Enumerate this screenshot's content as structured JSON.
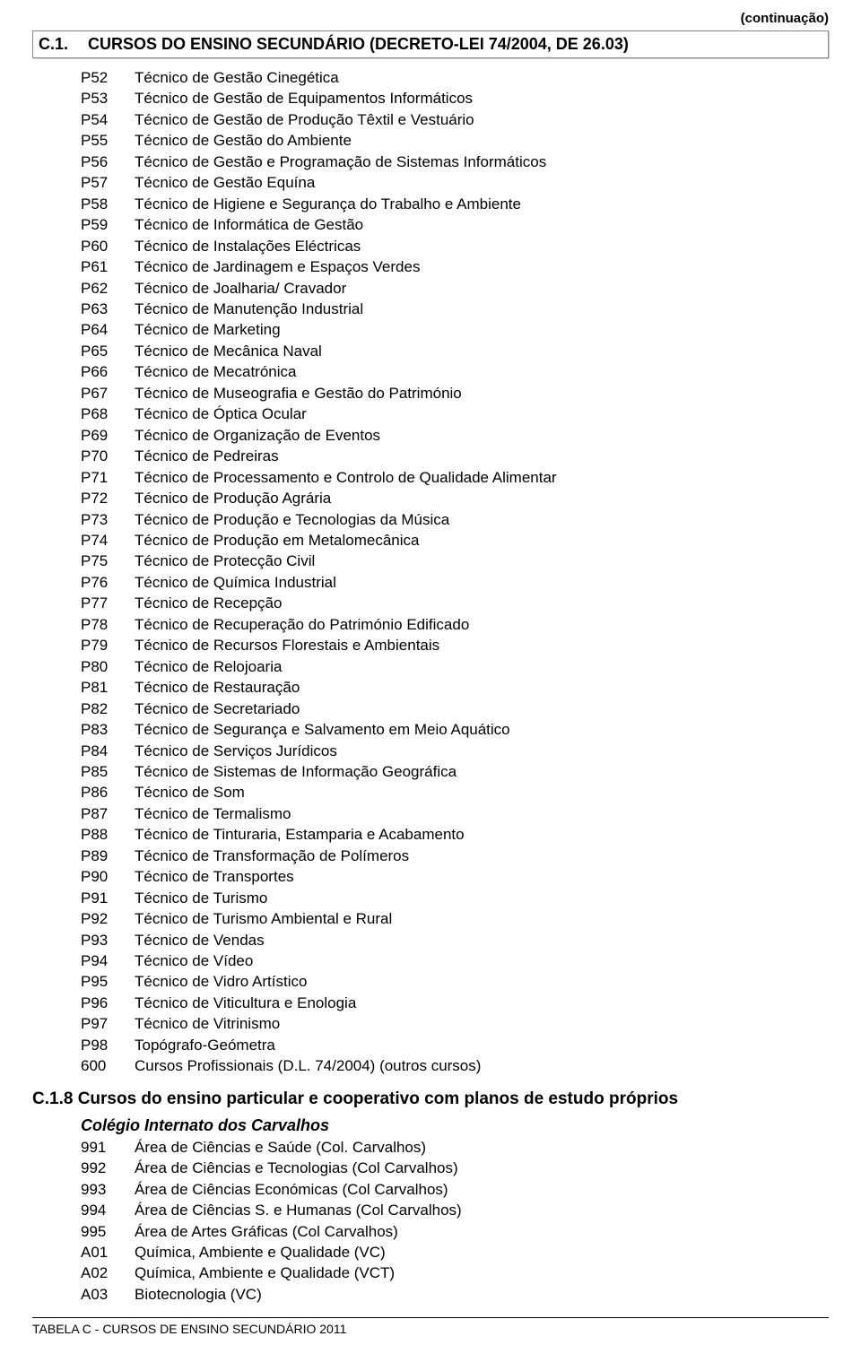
{
  "continuation_label": "(continuação)",
  "section": {
    "num": "C.1.",
    "title": "CURSOS DO ENSINO SECUNDÁRIO (DECRETO-LEI 74/2004, DE 26.03)"
  },
  "courses1": [
    {
      "code": "P52",
      "label": "Técnico de Gestão Cinegética"
    },
    {
      "code": "P53",
      "label": "Técnico de Gestão de Equipamentos Informáticos"
    },
    {
      "code": "P54",
      "label": "Técnico de Gestão de Produção Têxtil e Vestuário"
    },
    {
      "code": "P55",
      "label": "Técnico de Gestão do Ambiente"
    },
    {
      "code": "P56",
      "label": "Técnico de Gestão e Programação de Sistemas Informáticos"
    },
    {
      "code": "P57",
      "label": "Técnico de Gestão Equína"
    },
    {
      "code": "P58",
      "label": "Técnico de Higiene e Segurança do Trabalho e Ambiente"
    },
    {
      "code": "P59",
      "label": "Técnico de Informática de Gestão"
    },
    {
      "code": "P60",
      "label": "Técnico de Instalações Eléctricas"
    },
    {
      "code": "P61",
      "label": "Técnico de Jardinagem e Espaços Verdes"
    },
    {
      "code": "P62",
      "label": "Técnico de Joalharia/ Cravador"
    },
    {
      "code": "P63",
      "label": "Técnico de Manutenção Industrial"
    },
    {
      "code": "P64",
      "label": "Técnico de Marketing"
    },
    {
      "code": "P65",
      "label": "Técnico de Mecânica Naval"
    },
    {
      "code": "P66",
      "label": "Técnico de Mecatrónica"
    },
    {
      "code": "P67",
      "label": "Técnico de Museografia e Gestão do Património"
    },
    {
      "code": "P68",
      "label": "Técnico de Óptica Ocular"
    },
    {
      "code": "P69",
      "label": "Técnico de Organização de Eventos"
    },
    {
      "code": "P70",
      "label": "Técnico de Pedreiras"
    },
    {
      "code": "P71",
      "label": "Técnico de Processamento e Controlo de Qualidade Alimentar"
    },
    {
      "code": "P72",
      "label": "Técnico de Produção Agrária"
    },
    {
      "code": "P73",
      "label": "Técnico de Produção e Tecnologias da Música"
    },
    {
      "code": "P74",
      "label": "Técnico de Produção em Metalomecânica"
    },
    {
      "code": "P75",
      "label": "Técnico de Protecção Civil"
    },
    {
      "code": "P76",
      "label": "Técnico de Química Industrial"
    },
    {
      "code": "P77",
      "label": "Técnico de Recepção"
    },
    {
      "code": "P78",
      "label": "Técnico de Recuperação do Património Edificado"
    },
    {
      "code": "P79",
      "label": "Técnico de Recursos Florestais e Ambientais"
    },
    {
      "code": "P80",
      "label": "Técnico de Relojoaria"
    },
    {
      "code": "P81",
      "label": "Técnico de Restauração"
    },
    {
      "code": "P82",
      "label": "Técnico de Secretariado"
    },
    {
      "code": "P83",
      "label": "Técnico de Segurança e Salvamento em Meio Aquático"
    },
    {
      "code": "P84",
      "label": "Técnico de Serviços Jurídicos"
    },
    {
      "code": "P85",
      "label": "Técnico de Sistemas de Informação Geográfica"
    },
    {
      "code": "P86",
      "label": "Técnico de Som"
    },
    {
      "code": "P87",
      "label": "Técnico de Termalismo"
    },
    {
      "code": "P88",
      "label": "Técnico de Tinturaria, Estamparia e Acabamento"
    },
    {
      "code": "P89",
      "label": "Técnico de Transformação de Polímeros"
    },
    {
      "code": "P90",
      "label": "Técnico de Transportes"
    },
    {
      "code": "P91",
      "label": "Técnico de Turismo"
    },
    {
      "code": "P92",
      "label": "Técnico de Turismo Ambiental e Rural"
    },
    {
      "code": "P93",
      "label": "Técnico de Vendas"
    },
    {
      "code": "P94",
      "label": "Técnico de Vídeo"
    },
    {
      "code": "P95",
      "label": "Técnico de Vidro Artístico"
    },
    {
      "code": "P96",
      "label": "Técnico de Viticultura e Enologia"
    },
    {
      "code": "P97",
      "label": "Técnico de Vitrinismo"
    },
    {
      "code": "P98",
      "label": "Topógrafo-Geómetra"
    },
    {
      "code": "600",
      "label": "Cursos Profissionais (D.L. 74/2004) (outros cursos)"
    }
  ],
  "subsection": {
    "title": "C.1.8 Cursos do ensino particular e cooperativo com planos de estudo próprios"
  },
  "school": {
    "name": "Colégio Internato dos Carvalhos"
  },
  "courses2": [
    {
      "code": "991",
      "label": "Área de Ciências e Saúde (Col. Carvalhos)"
    },
    {
      "code": "992",
      "label": "Área de Ciências e Tecnologias (Col Carvalhos)"
    },
    {
      "code": "993",
      "label": "Área de Ciências Económicas (Col Carvalhos)"
    },
    {
      "code": "994",
      "label": "Área de Ciências S. e Humanas (Col Carvalhos)"
    },
    {
      "code": "995",
      "label": "Área de Artes Gráficas (Col Carvalhos)"
    },
    {
      "code": "A01",
      "label": "Química, Ambiente e Qualidade (VC)"
    },
    {
      "code": "A02",
      "label": "Química, Ambiente e Qualidade (VCT)"
    },
    {
      "code": "A03",
      "label": "Biotecnologia (VC)"
    }
  ],
  "footer": "TABELA C - CURSOS DE ENSINO SECUNDÁRIO 2011"
}
